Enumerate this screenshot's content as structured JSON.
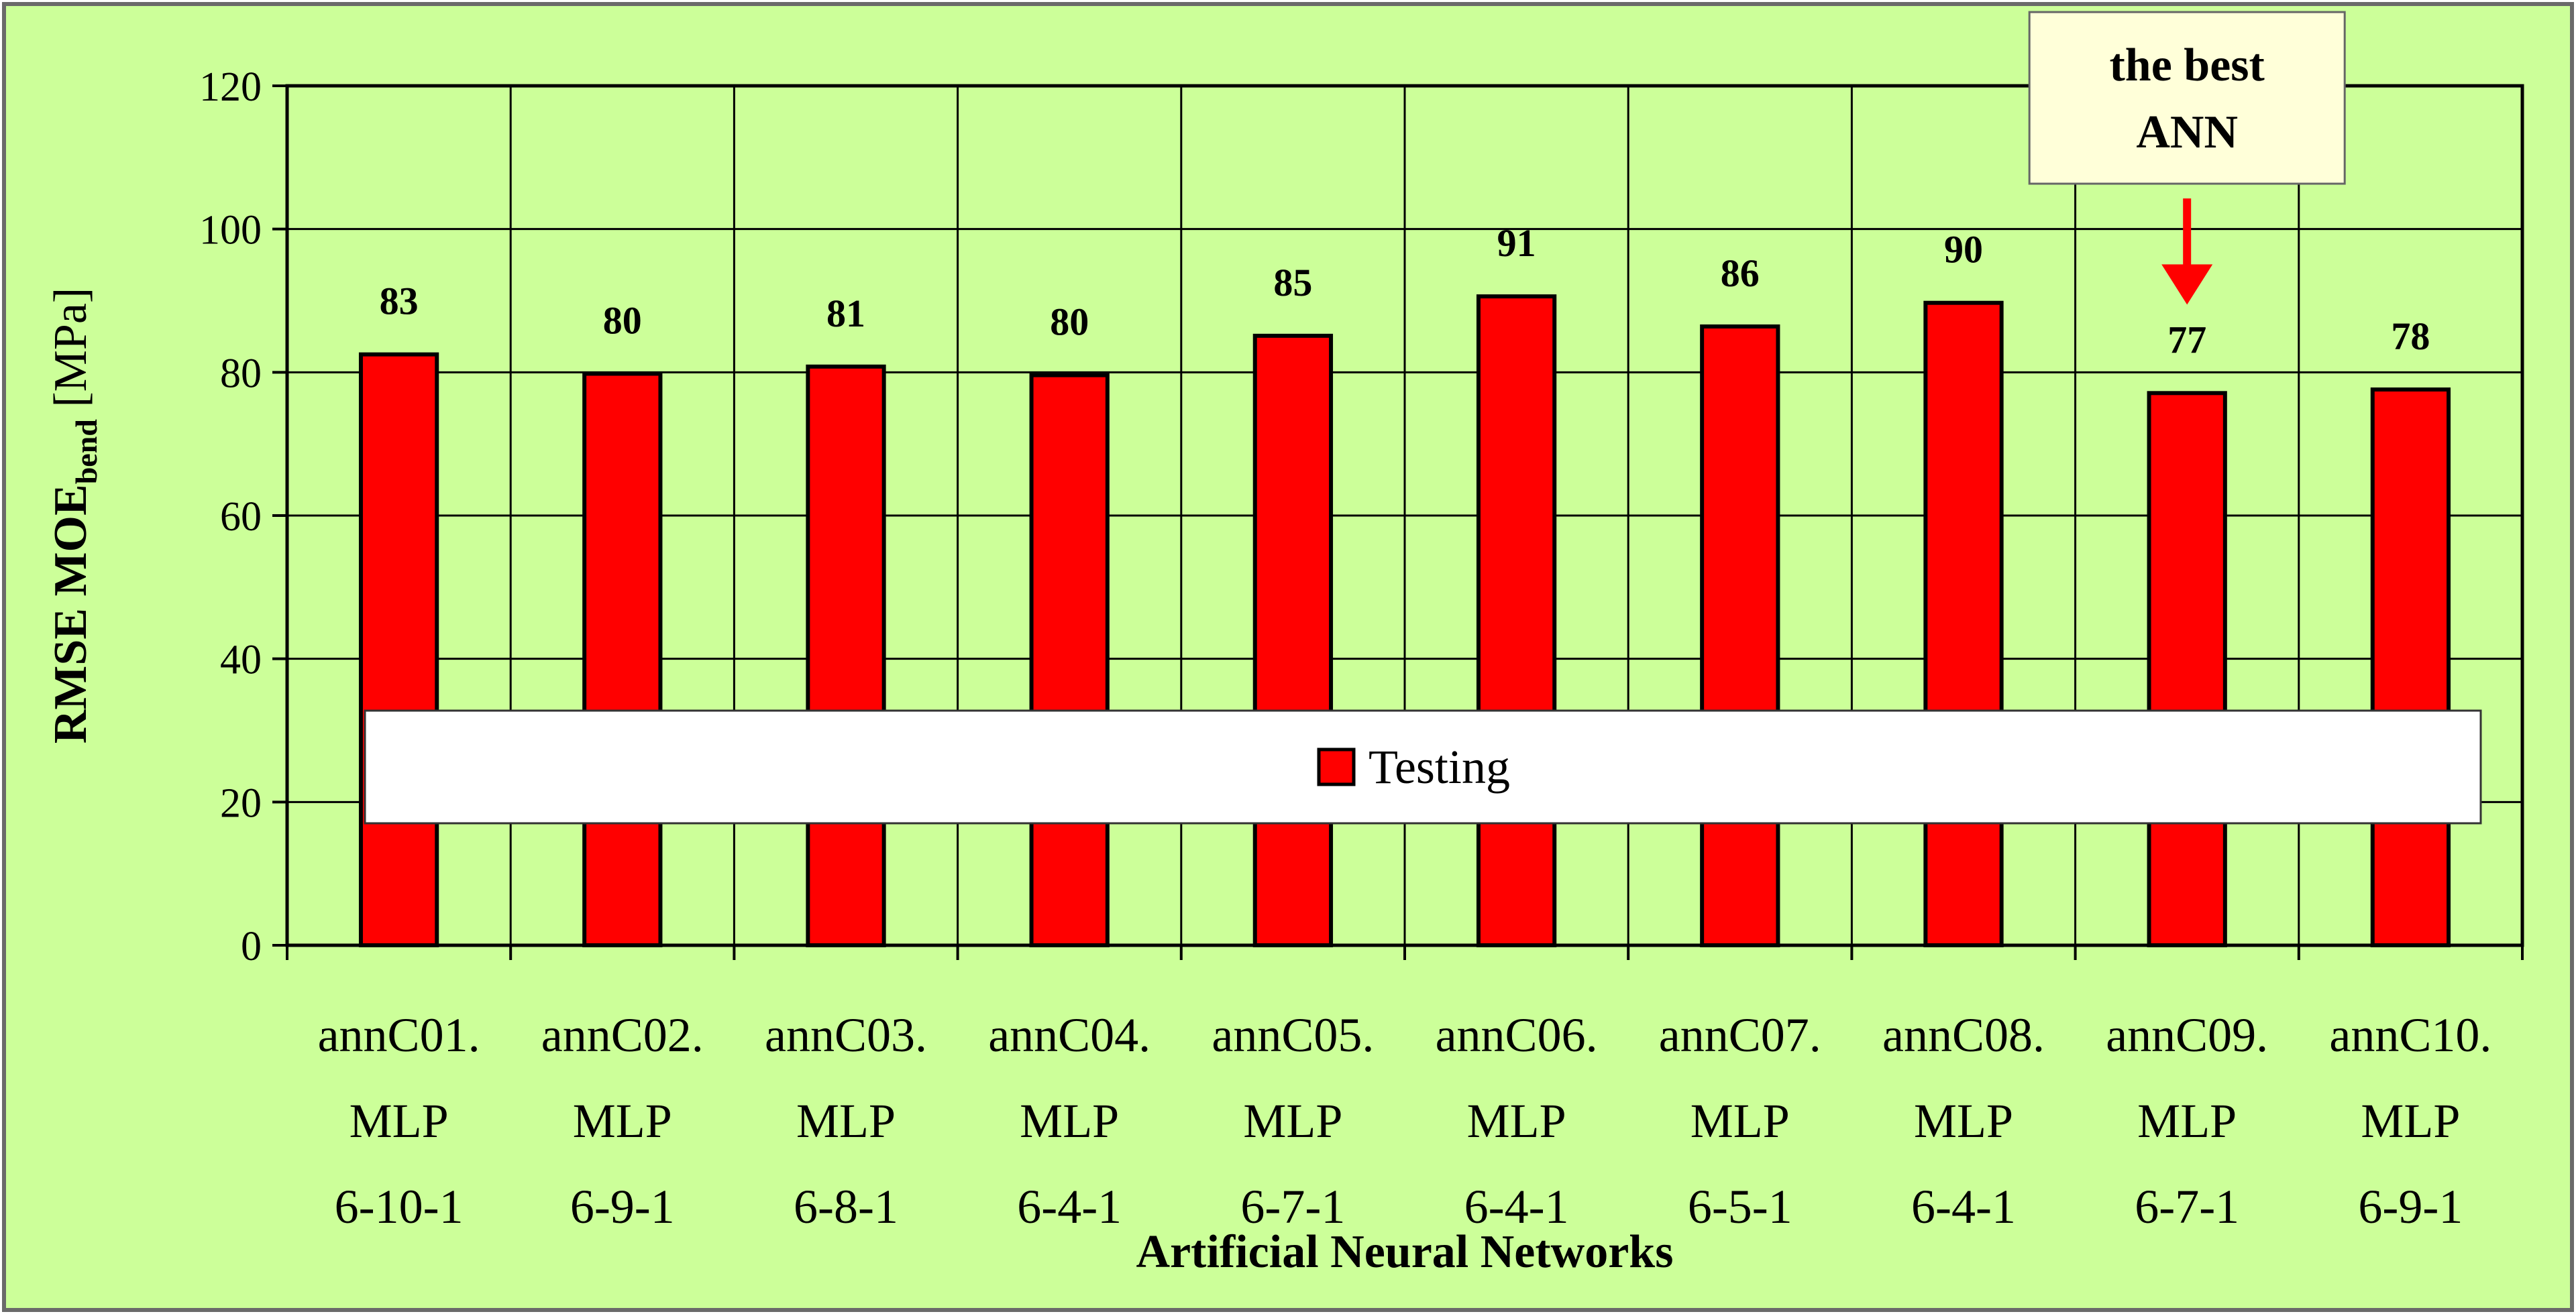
{
  "chart_data": {
    "type": "bar",
    "xlabel": "Artificial Neural Networks",
    "ylabel": {
      "main": "RMSE MOE",
      "subscript": "bend",
      "unit": "[MPa]"
    },
    "ylim": [
      0,
      120
    ],
    "yticks": [
      0,
      20,
      40,
      60,
      80,
      100,
      120
    ],
    "grid": true,
    "legend_position": "bottom-center",
    "categories": [
      [
        "annC01.",
        "MLP",
        "6-10-1"
      ],
      [
        "annC02.",
        "MLP",
        "6-9-1"
      ],
      [
        "annC03.",
        "MLP",
        "6-8-1"
      ],
      [
        "annC04.",
        "MLP",
        "6-4-1"
      ],
      [
        "annC05.",
        "MLP",
        "6-7-1"
      ],
      [
        "annC06.",
        "MLP",
        "6-4-1"
      ],
      [
        "annC07.",
        "MLP",
        "6-5-1"
      ],
      [
        "annC08.",
        "MLP",
        "6-4-1"
      ],
      [
        "annC09.",
        "MLP",
        "6-7-1"
      ],
      [
        "annC10.",
        "MLP",
        "6-9-1"
      ]
    ],
    "series": [
      {
        "name": "Testing",
        "values": [
          82.5,
          79.8,
          80.8,
          79.6,
          85.1,
          90.6,
          86.4,
          89.7,
          77.1,
          77.6
        ],
        "labels": [
          "83",
          "80",
          "81",
          "80",
          "85",
          "91",
          "86",
          "90",
          "77",
          "78"
        ],
        "color": "#ff0000"
      }
    ],
    "annotation": {
      "lines": [
        "the best",
        "ANN"
      ],
      "target_index": 8,
      "arrow_color": "#ff0000",
      "box_color": "#ffffd9"
    },
    "colors": {
      "background": "#ccff99",
      "plot_border": "#000000",
      "grid": "#000000",
      "legend_background": "#ffffff"
    }
  }
}
